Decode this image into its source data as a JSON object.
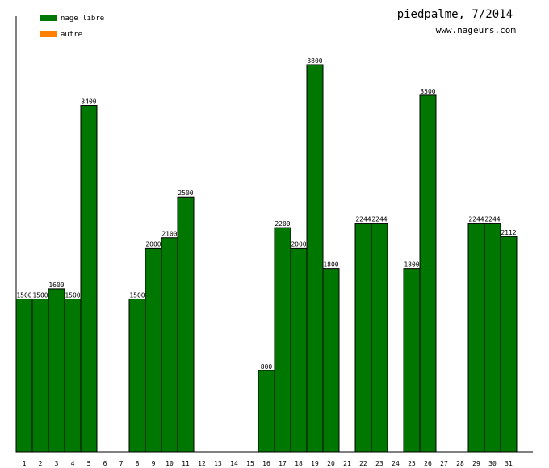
{
  "chart_data": {
    "type": "bar",
    "title": "piedpalme, 7/2014",
    "subtitle": "www.nageurs.com",
    "xlabel": "",
    "ylabel": "",
    "ylim": [
      0,
      3800
    ],
    "grid": false,
    "legend_position": "top-left",
    "categories": [
      "1",
      "2",
      "3",
      "4",
      "5",
      "6",
      "7",
      "8",
      "9",
      "10",
      "11",
      "12",
      "13",
      "14",
      "15",
      "16",
      "17",
      "18",
      "19",
      "20",
      "21",
      "22",
      "23",
      "24",
      "25",
      "26",
      "27",
      "28",
      "29",
      "30",
      "31"
    ],
    "series": [
      {
        "name": "nage libre",
        "color": "#007700",
        "values": [
          1500,
          1500,
          1600,
          1500,
          3400,
          0,
          0,
          1500,
          2000,
          2100,
          2500,
          0,
          0,
          0,
          0,
          800,
          2200,
          2000,
          3800,
          1800,
          0,
          2244,
          2244,
          0,
          1800,
          3500,
          0,
          0,
          2244,
          2244,
          2112
        ]
      },
      {
        "name": "autre",
        "color": "#ff8000",
        "values": [
          0,
          0,
          0,
          0,
          0,
          0,
          0,
          0,
          0,
          0,
          0,
          0,
          0,
          0,
          0,
          0,
          0,
          0,
          0,
          0,
          0,
          0,
          0,
          0,
          0,
          0,
          0,
          0,
          0,
          0,
          0
        ]
      }
    ],
    "data_labels": [
      "1500",
      "1500",
      "1600",
      "1500",
      "3400",
      "",
      "",
      "1500",
      "2000",
      "2100",
      "2500",
      "",
      "",
      "",
      "",
      "800",
      "2200",
      "2000",
      "3800",
      "1800",
      "",
      "2244",
      "2244",
      "",
      "1800",
      "3500",
      "",
      "",
      "2244",
      "2244",
      "2112"
    ]
  }
}
